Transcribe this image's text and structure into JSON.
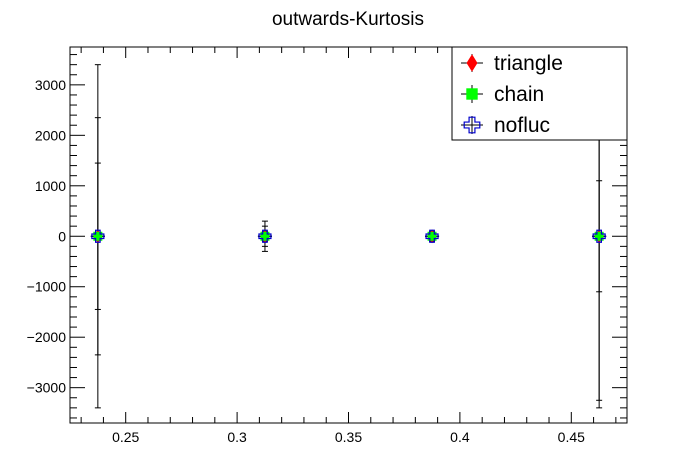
{
  "chart_data": {
    "type": "scatter",
    "title": "outwards-Kurtosis",
    "xlabel": "",
    "ylabel": "",
    "xlim": [
      0.225,
      0.475
    ],
    "ylim": [
      -3700,
      3750
    ],
    "x_ticks": [
      0.25,
      0.3,
      0.35,
      0.4,
      0.45
    ],
    "x_tick_labels": [
      "0.25",
      "0.3",
      "0.35",
      "0.4",
      "0.45"
    ],
    "y_ticks": [
      -3000,
      -2000,
      -1000,
      0,
      1000,
      2000,
      3000
    ],
    "y_tick_labels": [
      "−3000",
      "−2000",
      "−1000",
      "0",
      "1000",
      "2000",
      "3000"
    ],
    "grid": false,
    "legend_position": "top-right",
    "series": [
      {
        "name": "triangle",
        "color": "#ff0000",
        "marker": "diamond",
        "x": [
          0.2375,
          0.3125,
          0.3875,
          0.4625
        ],
        "y": [
          0,
          0,
          0,
          0
        ],
        "err": [
          1450,
          300,
          100,
          1100
        ]
      },
      {
        "name": "chain",
        "color": "#00ff00",
        "marker": "square",
        "x": [
          0.2375,
          0.3125,
          0.3875,
          0.4625
        ],
        "y": [
          0,
          0,
          0,
          0
        ],
        "err": [
          2350,
          200,
          50,
          3250
        ]
      },
      {
        "name": "nofluc",
        "color": "#0000cc",
        "marker": "open-cross",
        "x": [
          0.2375,
          0.3125,
          0.3875,
          0.4625
        ],
        "y": [
          0,
          0,
          0,
          0
        ],
        "err": [
          3400,
          100,
          50,
          3400
        ]
      }
    ]
  }
}
